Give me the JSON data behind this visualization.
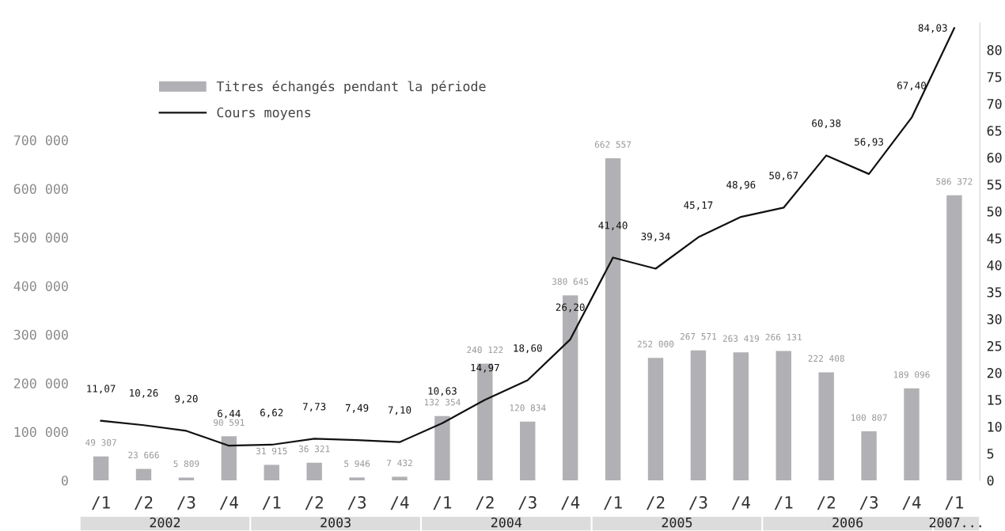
{
  "chart_data": {
    "type": "bar",
    "categories": [
      "/1",
      "/2",
      "/3",
      "/4",
      "/1",
      "/2",
      "/3",
      "/4",
      "/1",
      "/2",
      "/3",
      "/4",
      "/1",
      "/2",
      "/3",
      "/4",
      "/1",
      "/2",
      "/3",
      "/4",
      "/1"
    ],
    "series": [
      {
        "name": "Titres échangés pendant la période",
        "color": "#b1b1b5",
        "values": [
          49307,
          23666,
          5809,
          90591,
          31915,
          36321,
          5946,
          7432,
          132354,
          240122,
          120834,
          380645,
          662557,
          252000,
          267571,
          263419,
          266131,
          222408,
          100807,
          189096,
          586372
        ],
        "value_labels": [
          "49 307",
          "23 666",
          "5 809",
          "90 591",
          "31 915",
          "36 321",
          "5 946",
          "7 432",
          "132 354",
          "240 122",
          "120 834",
          "380 645",
          "662 557",
          "252 000",
          "267 571",
          "263 419",
          "266 131",
          "222 408",
          "100 807",
          "189 096",
          "586 372"
        ]
      },
      {
        "name": "Cours moyens",
        "type": "line",
        "axis": "y2",
        "color": "#111111",
        "values": [
          11.07,
          10.26,
          9.2,
          6.44,
          6.62,
          7.73,
          7.49,
          7.1,
          10.63,
          14.97,
          18.6,
          26.2,
          41.4,
          39.34,
          45.17,
          48.96,
          50.67,
          60.38,
          56.93,
          67.4,
          84.03
        ],
        "value_labels": [
          "11,07",
          "10,26",
          "9,20",
          "6,44",
          "6,62",
          "7,73",
          "7,49",
          "7,10",
          "10,63",
          "14,97",
          "18,60",
          "26,20",
          "41,40",
          "39,34",
          "45,17",
          "48,96",
          "50,67",
          "60,38",
          "56,93",
          "67,40",
          "84,03"
        ]
      }
    ],
    "ylim": [
      0,
      700000
    ],
    "yticks": [
      {
        "value": 0,
        "label": "0"
      },
      {
        "value": 100000,
        "label": "100 000"
      },
      {
        "value": 200000,
        "label": "200 000"
      },
      {
        "value": 300000,
        "label": "300 000"
      },
      {
        "value": 400000,
        "label": "400 000"
      },
      {
        "value": 500000,
        "label": "500 000"
      },
      {
        "value": 600000,
        "label": "600 000"
      },
      {
        "value": 700000,
        "label": "700 000"
      }
    ],
    "y2lim": [
      0,
      85
    ],
    "y2ticks": [
      0,
      5,
      10,
      15,
      20,
      25,
      30,
      35,
      40,
      45,
      50,
      55,
      60,
      65,
      70,
      75,
      80
    ],
    "annotations": [
      "2002",
      "2003",
      "2004",
      "2005",
      "2006",
      "2007..."
    ],
    "legend": "top left",
    "grid": false,
    "marker": "none",
    "line_style": "solid"
  }
}
